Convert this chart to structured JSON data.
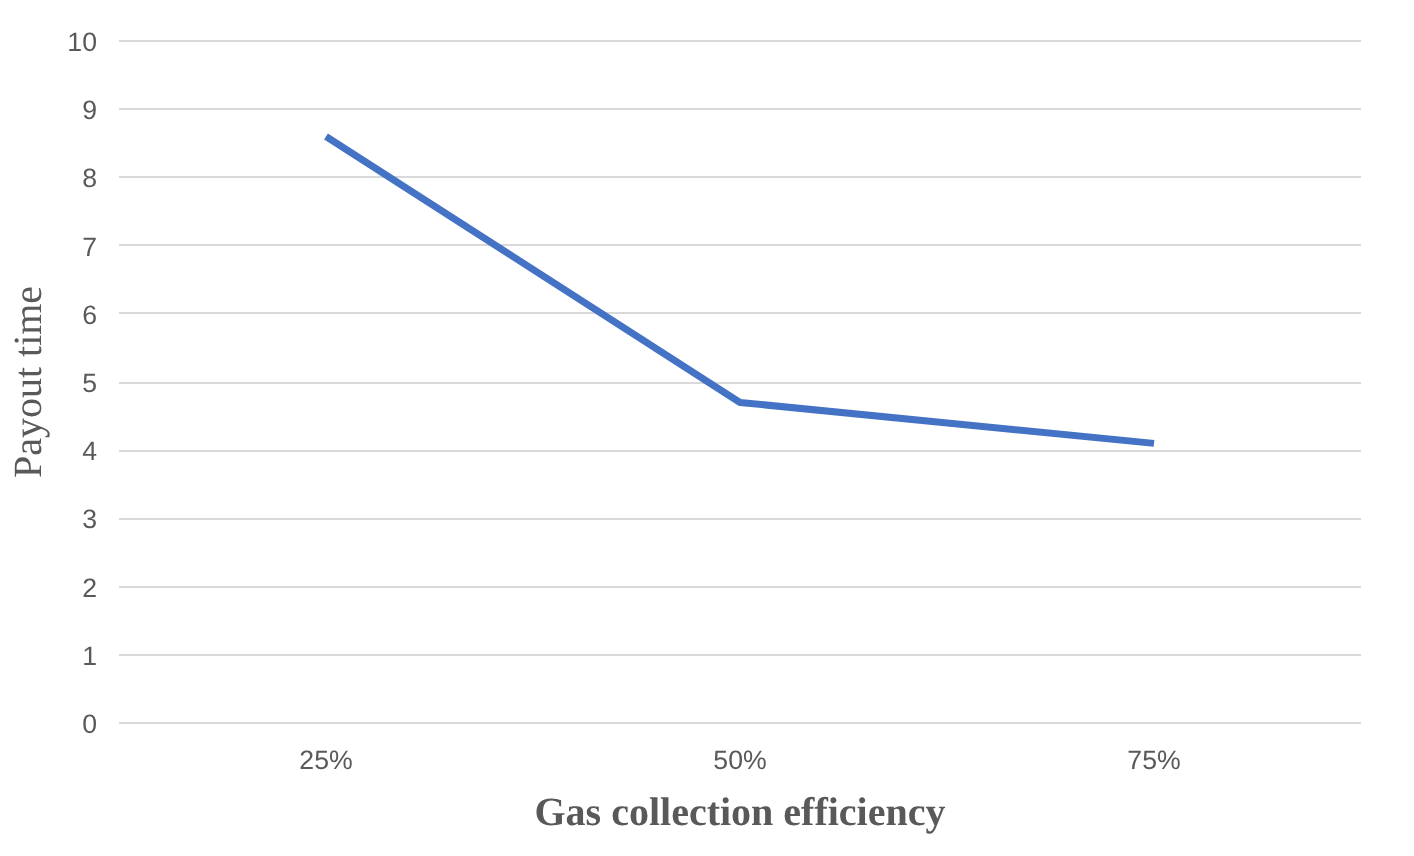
{
  "chart_data": {
    "type": "line",
    "xlabel": "Gas collection efficiency",
    "ylabel": "Payout time",
    "categories": [
      "25%",
      "50%",
      "75%"
    ],
    "series": [
      {
        "color": "#4472c4",
        "values": [
          8.6,
          4.7,
          4.1
        ]
      }
    ],
    "ylim": [
      0,
      10
    ],
    "yticks": [
      0,
      1,
      2,
      3,
      4,
      5,
      6,
      7,
      8,
      9,
      10
    ],
    "grid": "y",
    "marker": "none",
    "line_style": "solid"
  }
}
